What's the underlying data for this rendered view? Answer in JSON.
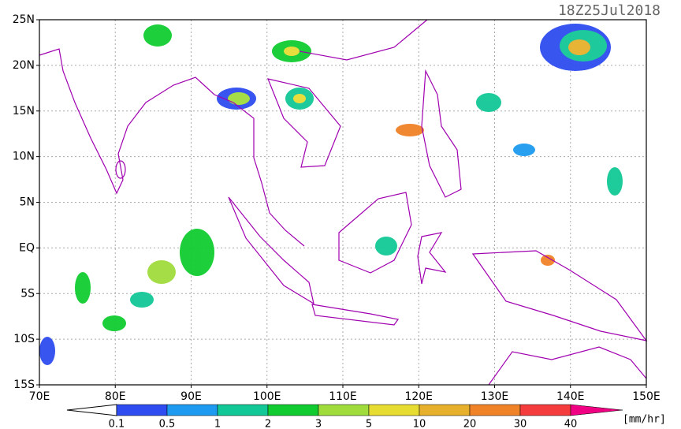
{
  "title": "18Z25Jul2018",
  "map": {
    "lon_ticks": [
      {
        "value": 70,
        "label": "70E"
      },
      {
        "value": 80,
        "label": "80E"
      },
      {
        "value": 90,
        "label": "90E"
      },
      {
        "value": 100,
        "label": "100E"
      },
      {
        "value": 110,
        "label": "110E"
      },
      {
        "value": 120,
        "label": "120E"
      },
      {
        "value": 130,
        "label": "130E"
      },
      {
        "value": 140,
        "label": "140E"
      },
      {
        "value": 150,
        "label": "150E"
      }
    ],
    "lat_ticks": [
      {
        "value": 25,
        "label": "25N"
      },
      {
        "value": 20,
        "label": "20N"
      },
      {
        "value": 15,
        "label": "15N"
      },
      {
        "value": 10,
        "label": "10N"
      },
      {
        "value": 5,
        "label": "5N"
      },
      {
        "value": 0,
        "label": "EQ"
      },
      {
        "value": -5,
        "label": "5S"
      },
      {
        "value": -10,
        "label": "10S"
      },
      {
        "value": -15,
        "label": "15S"
      }
    ],
    "lonlim": [
      70,
      150
    ],
    "latlim": [
      -15,
      25
    ],
    "grid": true
  },
  "colorbar": {
    "labels": [
      "0.1",
      "0.5",
      "1",
      "2",
      "3",
      "5",
      "10",
      "20",
      "30",
      "40"
    ],
    "colors": [
      "#2e4cf0",
      "#1e9af0",
      "#12c896",
      "#10cc30",
      "#a0dc3c",
      "#e6dc32",
      "#e6b02c",
      "#f08228",
      "#f43c3c",
      "#f00082"
    ],
    "unit": "[mm/hr]"
  }
}
